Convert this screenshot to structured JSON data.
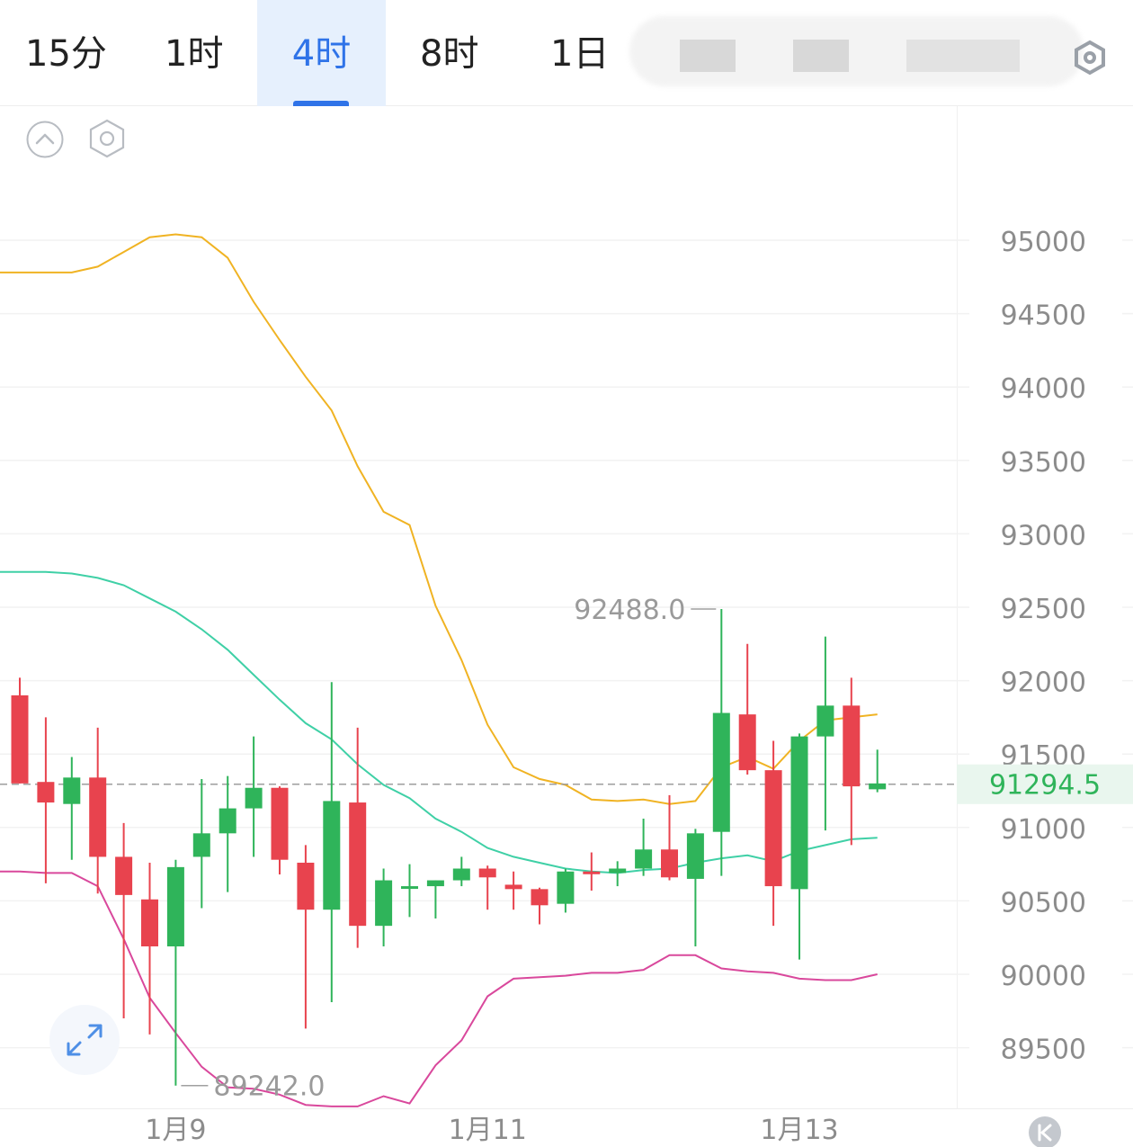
{
  "tabs": [
    {
      "label": "15分",
      "active": false
    },
    {
      "label": "1时",
      "active": false
    },
    {
      "label": "4时",
      "active": true
    },
    {
      "label": "8时",
      "active": false
    },
    {
      "label": "1日",
      "active": false
    }
  ],
  "colors": {
    "accent": "#2f73e8",
    "up": "#2fb45a",
    "down": "#e8434e",
    "upper_band": "#f0b323",
    "middle_band": "#3fd0a6",
    "lower_band": "#d9489c",
    "price_line": "#9e9e9e"
  },
  "icons": {
    "collapse": "chevron-up-circle-icon",
    "settings": "hexagon-settings-icon",
    "fullscreen": "expand-arrows-icon",
    "scroll_to_latest": "scroll-to-latest-icon"
  },
  "chart_data": {
    "type": "candlestick",
    "interval": "4时",
    "ylim": [
      89200,
      95700
    ],
    "y_ticks": [
      95000,
      94500,
      94000,
      93500,
      93000,
      92500,
      92000,
      91500,
      91000,
      90500,
      90000,
      89500
    ],
    "x_ticks": [
      {
        "label": "1月9",
        "index": 6
      },
      {
        "label": "1月11",
        "index": 18
      },
      {
        "label": "1月13",
        "index": 30
      }
    ],
    "current_price": "91294.5",
    "high_label": "92488.0",
    "low_label": "89242.0",
    "candles": [
      {
        "o": 91900,
        "h": 92020,
        "l": 91300,
        "c": 91300
      },
      {
        "o": 91310,
        "h": 91750,
        "l": 90620,
        "c": 91170
      },
      {
        "o": 91160,
        "h": 91480,
        "l": 90780,
        "c": 91340
      },
      {
        "o": 91340,
        "h": 91680,
        "l": 90550,
        "c": 90800
      },
      {
        "o": 90800,
        "h": 91030,
        "l": 89700,
        "c": 90540
      },
      {
        "o": 90510,
        "h": 90760,
        "l": 89590,
        "c": 90190
      },
      {
        "o": 90190,
        "h": 90780,
        "l": 89242,
        "c": 90730
      },
      {
        "o": 90800,
        "h": 91330,
        "l": 90450,
        "c": 90960
      },
      {
        "o": 90960,
        "h": 91350,
        "l": 90560,
        "c": 91130
      },
      {
        "o": 91130,
        "h": 91620,
        "l": 90800,
        "c": 91270
      },
      {
        "o": 91270,
        "h": 91280,
        "l": 90680,
        "c": 90780
      },
      {
        "o": 90760,
        "h": 90880,
        "l": 89630,
        "c": 90440
      },
      {
        "o": 90440,
        "h": 91990,
        "l": 89810,
        "c": 91180
      },
      {
        "o": 91170,
        "h": 91680,
        "l": 90180,
        "c": 90330
      },
      {
        "o": 90330,
        "h": 90720,
        "l": 90190,
        "c": 90640
      },
      {
        "o": 90600,
        "h": 90750,
        "l": 90390,
        "c": 90600
      },
      {
        "o": 90600,
        "h": 90640,
        "l": 90380,
        "c": 90640
      },
      {
        "o": 90640,
        "h": 90800,
        "l": 90600,
        "c": 90720
      },
      {
        "o": 90720,
        "h": 90740,
        "l": 90440,
        "c": 90660
      },
      {
        "o": 90610,
        "h": 90700,
        "l": 90440,
        "c": 90580
      },
      {
        "o": 90580,
        "h": 90590,
        "l": 90340,
        "c": 90470
      },
      {
        "o": 90480,
        "h": 90720,
        "l": 90420,
        "c": 90700
      },
      {
        "o": 90700,
        "h": 90830,
        "l": 90570,
        "c": 90690
      },
      {
        "o": 90690,
        "h": 90770,
        "l": 90600,
        "c": 90720
      },
      {
        "o": 90720,
        "h": 91060,
        "l": 90670,
        "c": 90850
      },
      {
        "o": 90850,
        "h": 91220,
        "l": 90640,
        "c": 90660
      },
      {
        "o": 90650,
        "h": 90990,
        "l": 90190,
        "c": 90960
      },
      {
        "o": 90970,
        "h": 92488,
        "l": 90670,
        "c": 91780
      },
      {
        "o": 91770,
        "h": 92250,
        "l": 91360,
        "c": 91390
      },
      {
        "o": 91390,
        "h": 91590,
        "l": 90330,
        "c": 90600
      },
      {
        "o": 90580,
        "h": 91640,
        "l": 90100,
        "c": 91620
      },
      {
        "o": 91620,
        "h": 92300,
        "l": 90980,
        "c": 91830
      },
      {
        "o": 91830,
        "h": 92020,
        "l": 90880,
        "c": 91280
      },
      {
        "o": 91260,
        "h": 91530,
        "l": 91240,
        "c": 91300
      }
    ],
    "bands": {
      "upper": [
        94780,
        94780,
        94780,
        94820,
        94920,
        95020,
        95040,
        95020,
        94880,
        94580,
        94320,
        94070,
        93840,
        93460,
        93150,
        93060,
        92510,
        92140,
        91700,
        91410,
        91330,
        91290,
        91190,
        91180,
        91190,
        91160,
        91180,
        91410,
        91480,
        91400,
        91590,
        91730,
        91750,
        91770
      ],
      "middle": [
        92740,
        92740,
        92730,
        92700,
        92650,
        92560,
        92470,
        92350,
        92210,
        92040,
        91870,
        91710,
        91600,
        91430,
        91290,
        91200,
        91060,
        90970,
        90860,
        90800,
        90760,
        90720,
        90700,
        90690,
        90710,
        90720,
        90760,
        90790,
        90810,
        90770,
        90840,
        90880,
        90920,
        90930
      ],
      "lower": [
        90700,
        90690,
        90690,
        90600,
        90240,
        89840,
        89600,
        89370,
        89230,
        89220,
        89180,
        89110,
        89100,
        89100,
        89170,
        89120,
        89380,
        89550,
        89850,
        89970,
        89980,
        89990,
        90010,
        90010,
        90030,
        90130,
        90130,
        90040,
        90020,
        90010,
        89970,
        89960,
        89960,
        90000
      ]
    }
  }
}
